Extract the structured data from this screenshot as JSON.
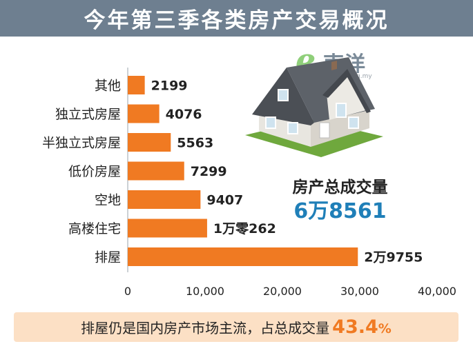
{
  "title": "今年第三季各类房产交易概况",
  "logo": {
    "main": "南洋",
    "mark": "e",
    "sub": "eNanyang.my"
  },
  "total": {
    "label": "房产总成交量",
    "value": "6万8561"
  },
  "footer": {
    "text": "排屋仍是国内房产市场主流，占总成交量",
    "percent": "43.4",
    "percent_sign": "%"
  },
  "colors": {
    "bar": "#f07a22",
    "title_bg": "#6e7f90",
    "total": "#1f7fb8",
    "footer_bg": "#fce0c5"
  },
  "chart_data": {
    "type": "bar",
    "orientation": "horizontal",
    "categories": [
      "其他",
      "独立式房屋",
      "半独立式房屋",
      "低价房屋",
      "空地",
      "高楼住宅",
      "排屋"
    ],
    "values": [
      2199,
      4076,
      5563,
      7299,
      9407,
      10262,
      29755
    ],
    "value_labels": [
      "2199",
      "4076",
      "5563",
      "7299",
      "9407",
      "1万零262",
      "2万9755"
    ],
    "xlim": [
      0,
      40000
    ],
    "xticks": [
      0,
      10000,
      20000,
      30000,
      40000
    ],
    "xtick_labels": [
      "0",
      "10,000",
      "20,000",
      "30,000",
      "40,000"
    ],
    "grid": false
  }
}
